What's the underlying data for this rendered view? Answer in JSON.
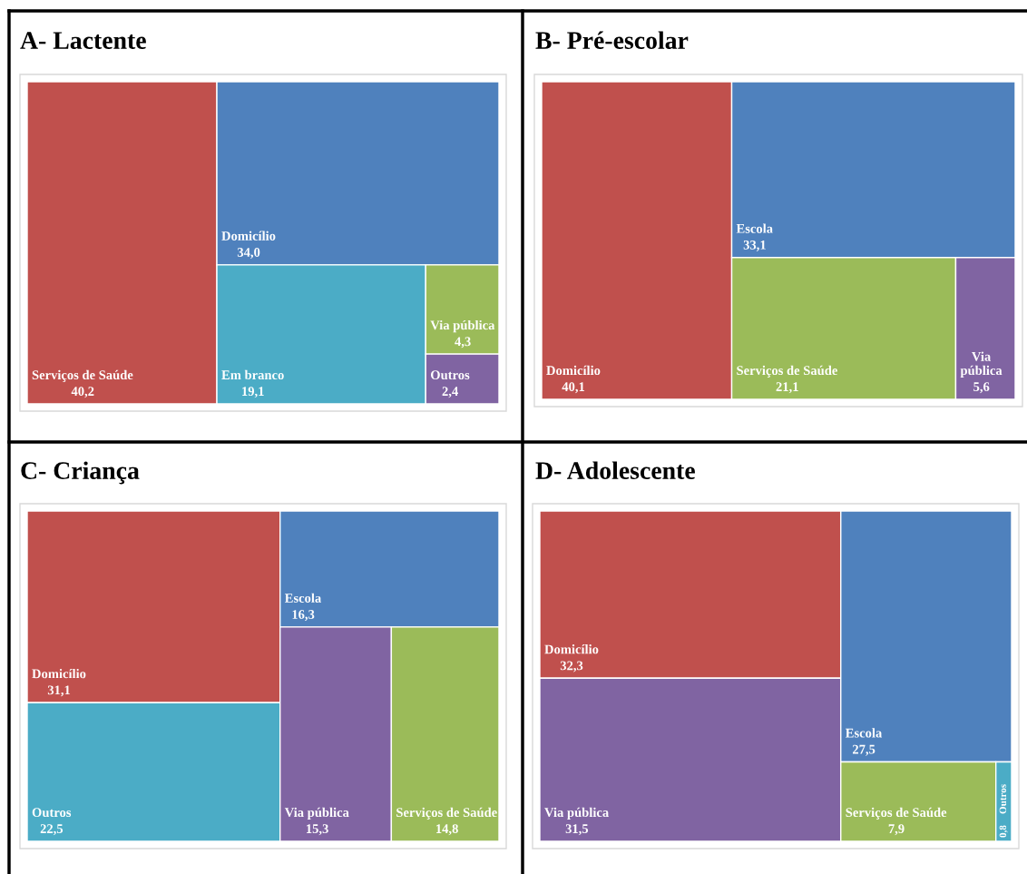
{
  "chart_data": [
    {
      "type": "other",
      "title": "A- Lactente",
      "categories": [
        "Serviços de Saúde",
        "Domicílio",
        "Em branco",
        "Via pública",
        "Outros"
      ],
      "values": [
        40.2,
        34.0,
        19.1,
        4.3,
        2.4
      ],
      "value_labels": [
        "40,2",
        "34,0",
        "19,1",
        "4,3",
        "2,4"
      ],
      "colors": [
        "#c0504d",
        "#4f81bd",
        "#4bacc6",
        "#9bbb59",
        "#8064a2"
      ],
      "data_labels": true
    },
    {
      "type": "other",
      "title": "B- Pré-escolar",
      "categories": [
        "Domicílio",
        "Escola",
        "Serviços de Saúde",
        "Via pública"
      ],
      "values": [
        40.1,
        33.1,
        21.1,
        5.6
      ],
      "value_labels": [
        "40,1",
        "33,1",
        "21,1",
        "5,6"
      ],
      "colors": [
        "#c0504d",
        "#4f81bd",
        "#9bbb59",
        "#8064a2"
      ],
      "data_labels": true
    },
    {
      "type": "other",
      "title": "C- Criança",
      "categories": [
        "Domicílio",
        "Outros",
        "Escola",
        "Via pública",
        "Serviços de Saúde"
      ],
      "values": [
        31.1,
        22.5,
        16.3,
        15.3,
        14.8
      ],
      "value_labels": [
        "31,1",
        "22,5",
        "16,3",
        "15,3",
        "14,8"
      ],
      "colors": [
        "#c0504d",
        "#4bacc6",
        "#4f81bd",
        "#8064a2",
        "#9bbb59"
      ],
      "data_labels": true
    },
    {
      "type": "other",
      "title": "D- Adolescente",
      "categories": [
        "Domicílio",
        "Via pública",
        "Escola",
        "Serviços de Saúde",
        "Outros"
      ],
      "values": [
        32.3,
        31.5,
        27.5,
        7.9,
        0.8
      ],
      "value_labels": [
        "32,3",
        "31,5",
        "27,5",
        "7,9",
        "0,8"
      ],
      "colors": [
        "#c0504d",
        "#8064a2",
        "#4f81bd",
        "#9bbb59",
        "#4bacc6"
      ],
      "data_labels": true
    }
  ]
}
